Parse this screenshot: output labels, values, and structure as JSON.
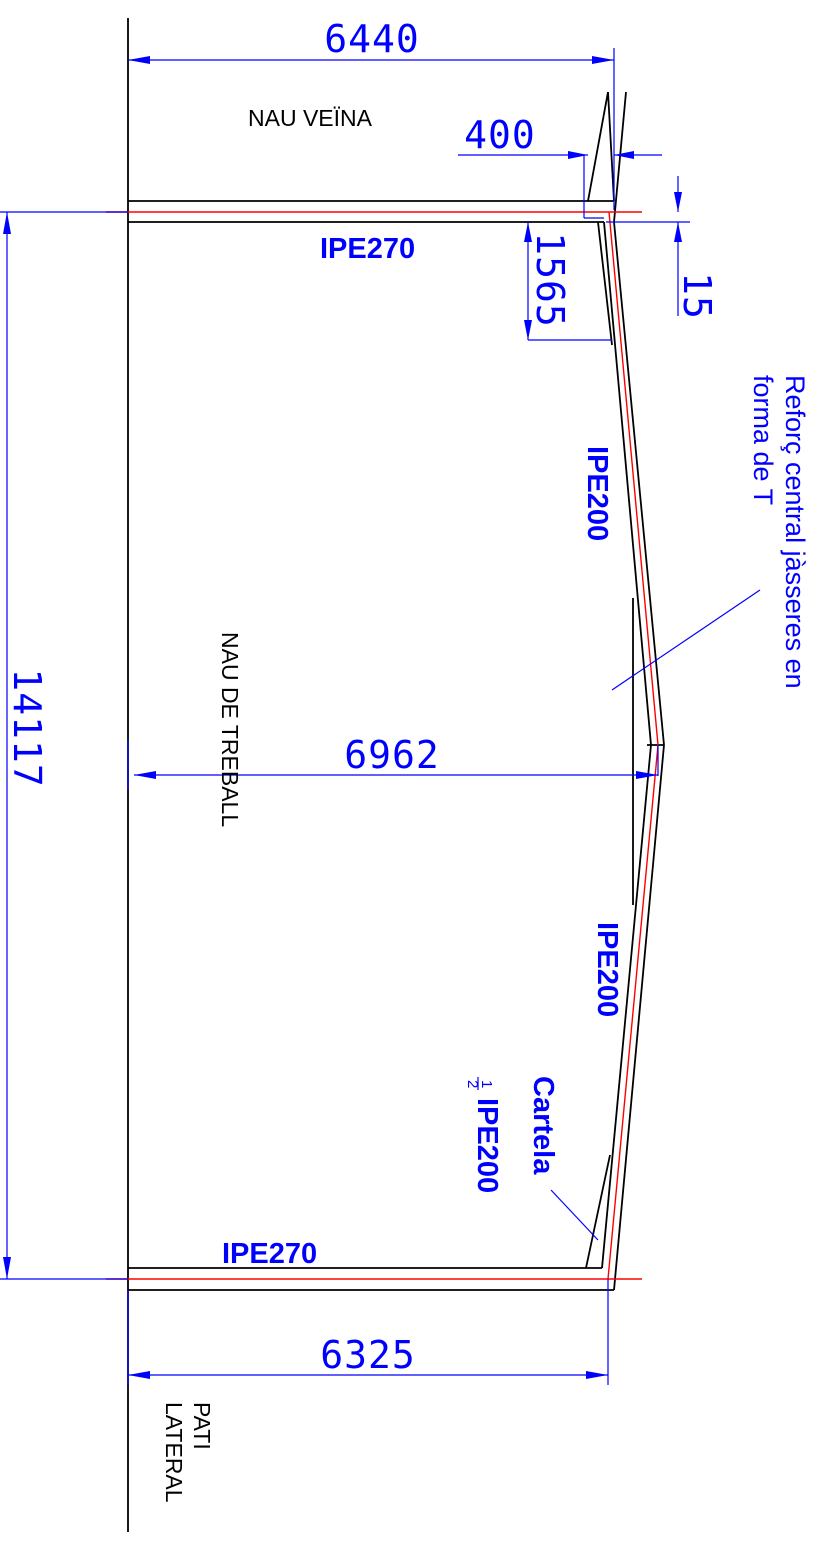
{
  "dimensions": {
    "top_width": "6440",
    "offset_400": "400",
    "vertical_1565": "1565",
    "small_15": "15",
    "total_height": "14117",
    "middle_width": "6962",
    "bottom_width": "6325"
  },
  "profiles": {
    "top_beam": "IPE270",
    "upper_girder": "IPE200",
    "lower_girder": "IPE200",
    "bottom_beam": "IPE270",
    "gusset_line1": "Cartela",
    "gusset_fraction_num": "1",
    "gusset_fraction_den": "2",
    "gusset_line2": "IPE200"
  },
  "labels": {
    "neighbor_bay": "NAU VEÏNA",
    "work_bay": "NAU DE TREBALL",
    "patio_line1": "PATI",
    "patio_line2": "LATERAL"
  },
  "notes": {
    "reinforcement_line1": "Reforç central jàsseres en",
    "reinforcement_line2": "forma de T"
  },
  "colors": {
    "structure": "#000000",
    "dimension": "#0000ff",
    "axis": "#ff0000"
  }
}
